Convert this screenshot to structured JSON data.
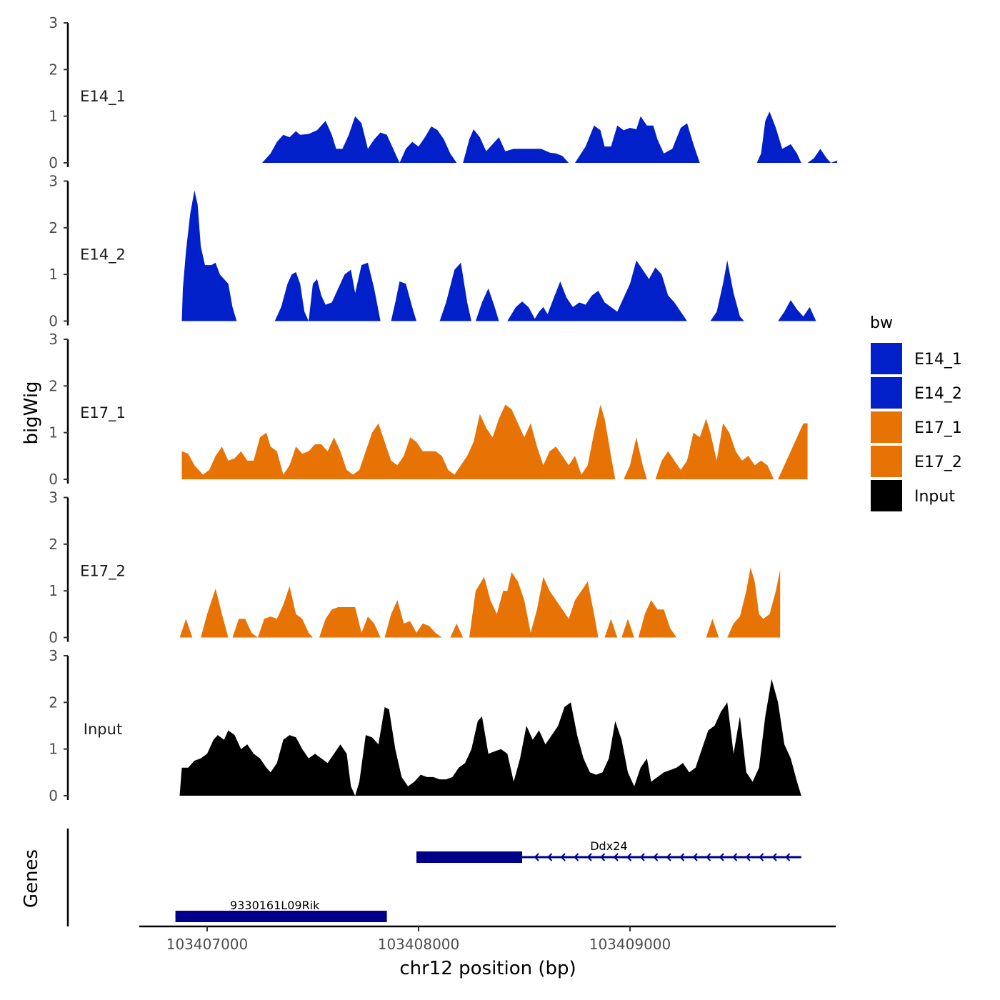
{
  "chart_data": {
    "type": "area",
    "ylabel": "bigWig",
    "genes_label": "Genes",
    "xlabel": "chr12 position (bp)",
    "xlim": [
      103406700,
      103410000
    ],
    "x_ticks": [
      103407000,
      103408000,
      103409000
    ],
    "x_tick_labels": [
      "103407000",
      "103408000",
      "103409000"
    ],
    "ylim": [
      0,
      3
    ],
    "y_ticks": [
      0,
      1,
      2,
      3
    ],
    "y_tick_labels": [
      "0",
      "1",
      "2",
      "3"
    ],
    "legend": {
      "title": "bw",
      "placement": "right",
      "entries": [
        {
          "label": "E14_1",
          "color": "#0220c9"
        },
        {
          "label": "E14_2",
          "color": "#0220c9"
        },
        {
          "label": "E17_1",
          "color": "#e87305"
        },
        {
          "label": "E17_2",
          "color": "#e87305"
        },
        {
          "label": "Input",
          "color": "#000000"
        }
      ]
    },
    "tracks": [
      {
        "name": "E14_1",
        "color": "#0220c9",
        "segments": [
          [
            [
              103407260,
              0
            ],
            [
              103407300,
              0.2
            ],
            [
              103407330,
              0.45
            ],
            [
              103407360,
              0.6
            ],
            [
              103407390,
              0.55
            ],
            [
              103407420,
              0.68
            ],
            [
              103407440,
              0.6
            ],
            [
              103407480,
              0.62
            ],
            [
              103407520,
              0.7
            ],
            [
              103407560,
              0.9
            ],
            [
              103407590,
              0.6
            ],
            [
              103407610,
              0.3
            ],
            [
              103407640,
              0.3
            ],
            [
              103407670,
              0.6
            ],
            [
              103407700,
              1.0
            ],
            [
              103407730,
              0.85
            ],
            [
              103407760,
              0.3
            ],
            [
              103407790,
              0.5
            ],
            [
              103407820,
              0.65
            ],
            [
              103407850,
              0.6
            ],
            [
              103407880,
              0.3
            ],
            [
              103407910,
              0
            ],
            [
              103407940,
              0.3
            ],
            [
              103407970,
              0.45
            ],
            [
              103408000,
              0.35
            ],
            [
              103408030,
              0.55
            ],
            [
              103408060,
              0.78
            ],
            [
              103408090,
              0.7
            ],
            [
              103408120,
              0.5
            ],
            [
              103408150,
              0.2
            ],
            [
              103408180,
              0
            ]
          ],
          [
            [
              103408210,
              0
            ],
            [
              103408240,
              0.5
            ],
            [
              103408260,
              0.72
            ],
            [
              103408290,
              0.55
            ],
            [
              103408320,
              0.25
            ],
            [
              103408350,
              0.4
            ],
            [
              103408380,
              0.55
            ],
            [
              103408410,
              0.25
            ],
            [
              103408450,
              0.3
            ],
            [
              103408530,
              0.3
            ],
            [
              103408580,
              0.3
            ],
            [
              103408620,
              0.22
            ],
            [
              103408650,
              0.2
            ],
            [
              103408680,
              0.15
            ],
            [
              103408710,
              0.0
            ]
          ],
          [
            [
              103408740,
              0
            ],
            [
              103408790,
              0.35
            ],
            [
              103408830,
              0.8
            ],
            [
              103408860,
              0.7
            ],
            [
              103408880,
              0.35
            ],
            [
              103408910,
              0.35
            ],
            [
              103408940,
              0.8
            ],
            [
              103408970,
              0.7
            ],
            [
              103409000,
              0.75
            ],
            [
              103409030,
              0.72
            ],
            [
              103409050,
              1.0
            ],
            [
              103409080,
              0.8
            ],
            [
              103409110,
              0.8
            ],
            [
              103409130,
              0.5
            ],
            [
              103409160,
              0.2
            ],
            [
              103409200,
              0.3
            ],
            [
              103409240,
              0.75
            ],
            [
              103409270,
              0.85
            ],
            [
              103409300,
              0.4
            ],
            [
              103409330,
              0
            ]
          ],
          [
            [
              103409600,
              0
            ],
            [
              103409620,
              0.2
            ],
            [
              103409640,
              0.9
            ],
            [
              103409660,
              1.1
            ],
            [
              103409690,
              0.75
            ],
            [
              103409720,
              0.3
            ],
            [
              103409760,
              0.4
            ],
            [
              103409790,
              0.2
            ],
            [
              103409810,
              0
            ]
          ],
          [
            [
              103409840,
              0
            ],
            [
              103409870,
              0.1
            ],
            [
              103409900,
              0.3
            ],
            [
              103409930,
              0.1
            ],
            [
              103409950,
              0
            ],
            [
              103409980,
              0.05
            ]
          ]
        ]
      }
    ]
  }
}
